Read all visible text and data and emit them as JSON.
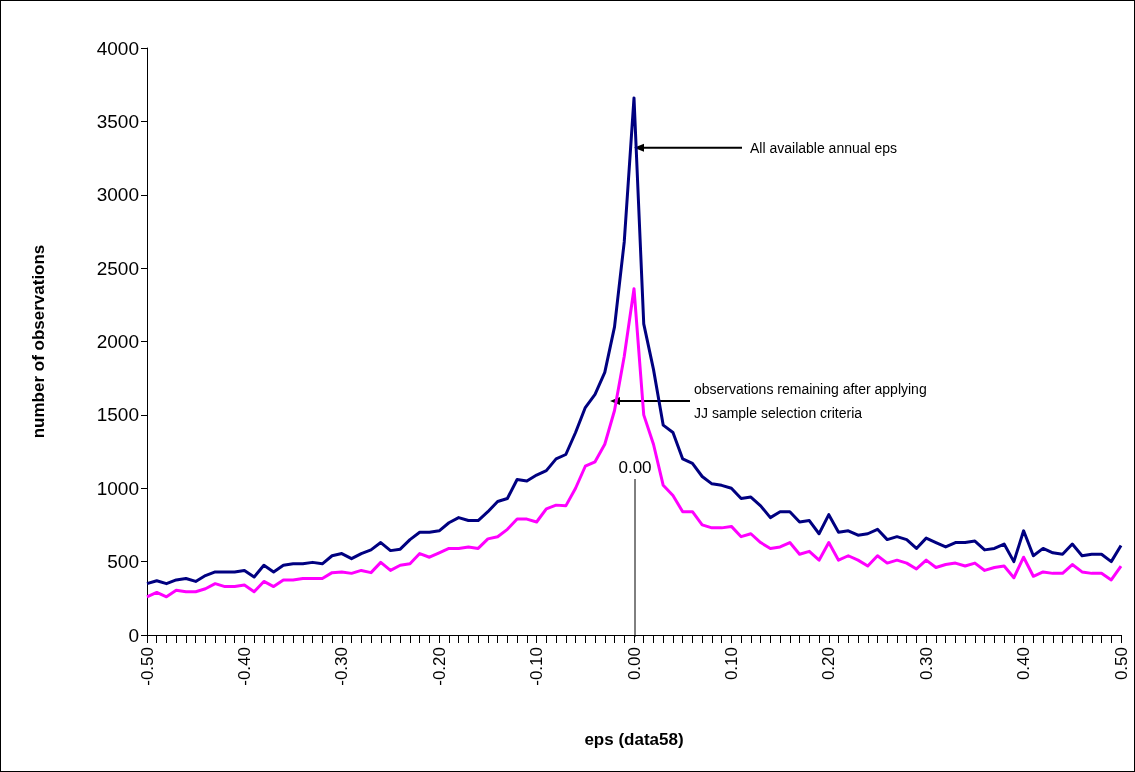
{
  "chart_data": {
    "type": "line",
    "xlabel": "eps (data58)",
    "ylabel": "number of observations",
    "categories": [
      "-0.50",
      null,
      null,
      null,
      null,
      null,
      null,
      null,
      null,
      null,
      "-0.40",
      null,
      null,
      null,
      null,
      null,
      null,
      null,
      null,
      null,
      "-0.30",
      null,
      null,
      null,
      null,
      null,
      null,
      null,
      null,
      null,
      "-0.20",
      null,
      null,
      null,
      null,
      null,
      null,
      null,
      null,
      null,
      "-0.10",
      null,
      null,
      null,
      null,
      null,
      null,
      null,
      null,
      null,
      "0.00",
      null,
      null,
      null,
      null,
      null,
      null,
      null,
      null,
      null,
      "0.10",
      null,
      null,
      null,
      null,
      null,
      null,
      null,
      null,
      null,
      "0.20",
      null,
      null,
      null,
      null,
      null,
      null,
      null,
      null,
      null,
      "0.30",
      null,
      null,
      null,
      null,
      null,
      null,
      null,
      null,
      null,
      "0.40",
      null,
      null,
      null,
      null,
      null,
      null,
      null,
      null,
      null,
      "0.50"
    ],
    "series": [
      {
        "color": "#000080",
        "values": [
          350,
          370,
          350,
          375,
          385,
          365,
          405,
          430,
          430,
          430,
          440,
          395,
          475,
          430,
          475,
          485,
          485,
          495,
          485,
          540,
          555,
          520,
          555,
          580,
          630,
          575,
          585,
          650,
          700,
          700,
          710,
          765,
          800,
          780,
          780,
          840,
          910,
          930,
          1060,
          1050,
          1090,
          1120,
          1200,
          1230,
          1380,
          1550,
          1640,
          1790,
          2100,
          2680,
          3660,
          2120,
          1810,
          1430,
          1380,
          1200,
          1170,
          1080,
          1030,
          1020,
          1000,
          930,
          940,
          880,
          800,
          840,
          840,
          770,
          780,
          690,
          820,
          700,
          710,
          680,
          690,
          720,
          650,
          670,
          650,
          590,
          660,
          630,
          600,
          630,
          630,
          640,
          580,
          590,
          620,
          500,
          710,
          540,
          590,
          560,
          550,
          620,
          540,
          550,
          550,
          500,
          610
        ]
      },
      {
        "color": "#ff00ff",
        "values": [
          260,
          290,
          260,
          305,
          295,
          295,
          315,
          350,
          330,
          330,
          340,
          295,
          365,
          330,
          375,
          375,
          385,
          385,
          385,
          425,
          430,
          420,
          440,
          425,
          495,
          440,
          475,
          485,
          555,
          530,
          560,
          590,
          590,
          600,
          590,
          655,
          670,
          720,
          790,
          790,
          770,
          860,
          885,
          880,
          1000,
          1150,
          1180,
          1300,
          1530,
          1900,
          2360,
          1500,
          1300,
          1020,
          950,
          840,
          840,
          750,
          730,
          730,
          740,
          670,
          690,
          630,
          590,
          600,
          630,
          550,
          570,
          510,
          630,
          510,
          540,
          510,
          470,
          540,
          490,
          510,
          490,
          450,
          510,
          460,
          480,
          490,
          470,
          490,
          440,
          460,
          470,
          390,
          530,
          400,
          430,
          420,
          420,
          480,
          430,
          420,
          420,
          375,
          470
        ]
      }
    ],
    "ylim": [
      0,
      4000
    ],
    "yticks": [
      0,
      500,
      1000,
      1500,
      2000,
      2500,
      3000,
      3500,
      4000
    ],
    "grid": false,
    "marker": "none",
    "line_style": "solid",
    "annotations": [
      {
        "text": "All available annual eps",
        "x": "0.00",
        "y": 3320
      },
      "observations remaining after applying\nJJ sample selection criteria",
      "0.00"
    ]
  }
}
